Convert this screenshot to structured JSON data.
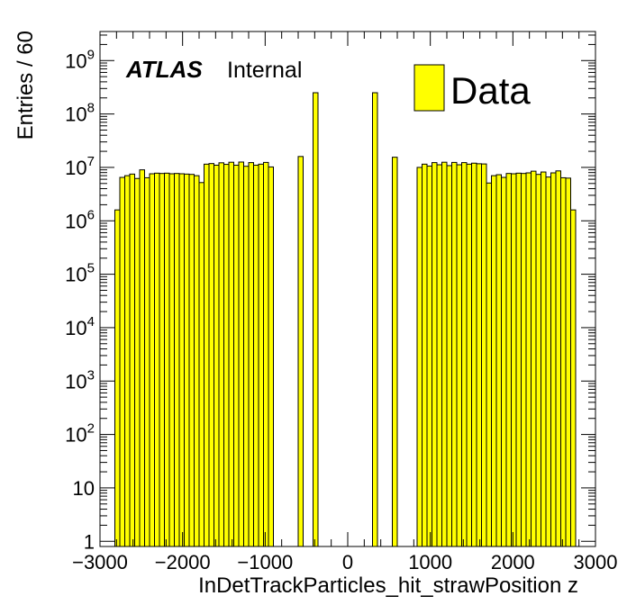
{
  "colors": {
    "fill": "#ffff00",
    "line": "#000000",
    "background": "#ffffff"
  },
  "labels": {
    "atlas": "ATLAS",
    "internal": "Internal"
  },
  "legend": {
    "entries": [
      {
        "name": "Data",
        "color": "#ffff00"
      }
    ],
    "placement": "top-right"
  },
  "chart_data": {
    "type": "bar",
    "title": "",
    "xlabel": "InDetTrackParticles_hit_strawPosition z",
    "ylabel": "Entries / 60",
    "xlim": [
      -3000,
      3000
    ],
    "ylim": [
      0.8,
      3500000000
    ],
    "yscale": "log",
    "grid": false,
    "bin_width": 60,
    "x_ticks": [
      -3000,
      -2000,
      -1000,
      0,
      1000,
      2000,
      3000
    ],
    "x_tick_labels": [
      "−3000",
      "−2000",
      "−1000",
      "0",
      "1000",
      "2000",
      "3000"
    ],
    "y_ticks": [
      1,
      10,
      100,
      1000,
      10000,
      100000,
      1000000,
      10000000,
      100000000,
      1000000000
    ],
    "y_tick_labels": [
      {
        "base": "1",
        "exp": ""
      },
      {
        "base": "10",
        "exp": ""
      },
      {
        "base": "10",
        "exp": "2"
      },
      {
        "base": "10",
        "exp": "3"
      },
      {
        "base": "10",
        "exp": "4"
      },
      {
        "base": "10",
        "exp": "5"
      },
      {
        "base": "10",
        "exp": "6"
      },
      {
        "base": "10",
        "exp": "7"
      },
      {
        "base": "10",
        "exp": "8"
      },
      {
        "base": "10",
        "exp": "9"
      }
    ],
    "series": [
      {
        "name": "Data",
        "bins": [
          {
            "x": -2790,
            "value": 1600000
          },
          {
            "x": -2730,
            "value": 6500000
          },
          {
            "x": -2670,
            "value": 7000000
          },
          {
            "x": -2610,
            "value": 7500000
          },
          {
            "x": -2550,
            "value": 6200000
          },
          {
            "x": -2490,
            "value": 9000000
          },
          {
            "x": -2430,
            "value": 6400000
          },
          {
            "x": -2370,
            "value": 7600000
          },
          {
            "x": -2310,
            "value": 7800000
          },
          {
            "x": -2250,
            "value": 7700000
          },
          {
            "x": -2190,
            "value": 7800000
          },
          {
            "x": -2130,
            "value": 7600000
          },
          {
            "x": -2070,
            "value": 7700000
          },
          {
            "x": -2010,
            "value": 7600000
          },
          {
            "x": -1950,
            "value": 7500000
          },
          {
            "x": -1890,
            "value": 7400000
          },
          {
            "x": -1830,
            "value": 7000000
          },
          {
            "x": -1770,
            "value": 5200000
          },
          {
            "x": -1710,
            "value": 11500000
          },
          {
            "x": -1650,
            "value": 11800000
          },
          {
            "x": -1590,
            "value": 11000000
          },
          {
            "x": -1530,
            "value": 12200000
          },
          {
            "x": -1470,
            "value": 11400000
          },
          {
            "x": -1410,
            "value": 12500000
          },
          {
            "x": -1350,
            "value": 11000000
          },
          {
            "x": -1290,
            "value": 12600000
          },
          {
            "x": -1230,
            "value": 10500000
          },
          {
            "x": -1170,
            "value": 12300000
          },
          {
            "x": -1110,
            "value": 11000000
          },
          {
            "x": -1050,
            "value": 11500000
          },
          {
            "x": -990,
            "value": 12400000
          },
          {
            "x": -930,
            "value": 10200000
          },
          {
            "x": -570,
            "value": 16000000
          },
          {
            "x": -390,
            "value": 250000000
          },
          {
            "x": 330,
            "value": 250000000
          },
          {
            "x": 570,
            "value": 15500000
          },
          {
            "x": 870,
            "value": 10000000
          },
          {
            "x": 930,
            "value": 11500000
          },
          {
            "x": 990,
            "value": 10600000
          },
          {
            "x": 1050,
            "value": 12300000
          },
          {
            "x": 1110,
            "value": 11200000
          },
          {
            "x": 1170,
            "value": 12500000
          },
          {
            "x": 1230,
            "value": 10800000
          },
          {
            "x": 1290,
            "value": 12400000
          },
          {
            "x": 1350,
            "value": 11200000
          },
          {
            "x": 1410,
            "value": 12300000
          },
          {
            "x": 1470,
            "value": 11500000
          },
          {
            "x": 1530,
            "value": 12000000
          },
          {
            "x": 1590,
            "value": 11700000
          },
          {
            "x": 1650,
            "value": 11600000
          },
          {
            "x": 1710,
            "value": 5100000
          },
          {
            "x": 1770,
            "value": 7000000
          },
          {
            "x": 1830,
            "value": 7300000
          },
          {
            "x": 1890,
            "value": 6500000
          },
          {
            "x": 1950,
            "value": 7700000
          },
          {
            "x": 2010,
            "value": 7600000
          },
          {
            "x": 2070,
            "value": 7800000
          },
          {
            "x": 2130,
            "value": 7700000
          },
          {
            "x": 2190,
            "value": 7900000
          },
          {
            "x": 2250,
            "value": 8500000
          },
          {
            "x": 2310,
            "value": 7400000
          },
          {
            "x": 2370,
            "value": 8200000
          },
          {
            "x": 2430,
            "value": 6600000
          },
          {
            "x": 2490,
            "value": 7900000
          },
          {
            "x": 2550,
            "value": 8600000
          },
          {
            "x": 2610,
            "value": 6400000
          },
          {
            "x": 2670,
            "value": 6300000
          },
          {
            "x": 2730,
            "value": 1600000
          }
        ]
      }
    ]
  }
}
